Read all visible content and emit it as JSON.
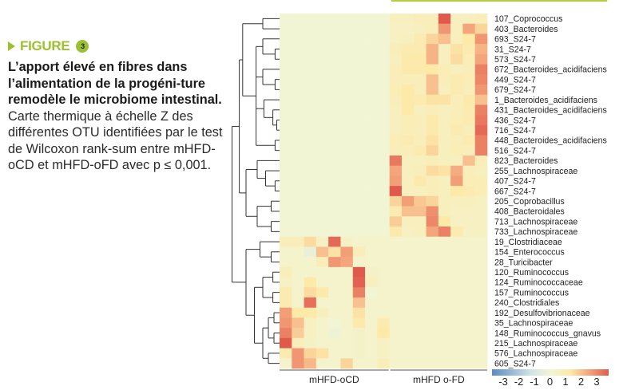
{
  "caption": {
    "figure_label": "FIGURE",
    "figure_number": "3",
    "title": "L’apport élevé en fibres dans l’alimentation de la progéni-ture remodèle le microbiome intestinal.",
    "description": "Carte thermique à échelle Z des différentes OTU identifiées par le test de Wilcoxon rank-sum entre mHFD-oCD et mHFD-oFD avec p ≤ 0,001."
  },
  "colors": {
    "accent": "#9cc130",
    "low": "#5b8ac4",
    "mid": "#f2f5d4",
    "high": "#e05a4c"
  },
  "chart_data": {
    "type": "heatmap",
    "groups": [
      {
        "label": "mHFD-oCD",
        "n_columns": 9
      },
      {
        "label": "mHFD o-FD",
        "n_columns": 8
      }
    ],
    "rows": [
      "107_Coprococcus",
      "403_Bacteroides",
      "693_S24-7",
      "31_S24-7",
      "573_S24-7",
      "672_Bacteroides_acidifaciens",
      "449_S24-7",
      "679_S24-7",
      "1_Bacteroides_acidifaciens",
      "431_Bacteroides_acidifaciens",
      "436_S24-7",
      "716_S24-7",
      "448_Bacteroides_acidifaciens",
      "516_S24-7",
      "823_Bacteroides",
      "255_Lachnospiraceae",
      "407_S24-7",
      "667_S24-7",
      "205_Coprobacillus",
      "408_Bacteroidales",
      "713_Lachnospiraceae",
      "733_Lachnospiraceae",
      "19_Clostridiaceae",
      "154_Enterococcus",
      "28_Turicibacter",
      "120_Ruminococcus",
      "124_Ruminococcaceae",
      "157_Ruminococcus",
      "240_Clostridiales",
      "192_Desulfovibrionaceae",
      "35_Lachnospiraceae",
      "148_Ruminococcus_gnavus",
      "215_Lachnospiraceae",
      "576_Lachnospiraceae",
      "605_S24-7"
    ],
    "values": [
      [
        0,
        0,
        0,
        0,
        0,
        0,
        0,
        0,
        0,
        0.5,
        0.5,
        0.6,
        0.6,
        3,
        0.5,
        0.5,
        0.6
      ],
      [
        0,
        0,
        0,
        0,
        0,
        0,
        0,
        0,
        0,
        0.4,
        0.4,
        0.5,
        0.6,
        2.2,
        0.5,
        2,
        1.3
      ],
      [
        0,
        0,
        0,
        0,
        0,
        0,
        0,
        0,
        0,
        0.4,
        0.5,
        0.8,
        1.3,
        1.6,
        0.5,
        1,
        2.2
      ],
      [
        0,
        0,
        0,
        0,
        0,
        0,
        0,
        0,
        0,
        0.6,
        0.8,
        0.8,
        1.8,
        0.5,
        1.1,
        0.8,
        1.8
      ],
      [
        0,
        0,
        0,
        0,
        0,
        0,
        0,
        0,
        0,
        0.5,
        0.9,
        0.9,
        1.8,
        0.5,
        1.2,
        0.7,
        2.0
      ],
      [
        0,
        0,
        0,
        0,
        0,
        0,
        0,
        0,
        0,
        0.6,
        0.9,
        0.9,
        1,
        0.7,
        0.5,
        0.6,
        2.5
      ],
      [
        0,
        0,
        0,
        0,
        0,
        0,
        0,
        0,
        0,
        0.6,
        0.6,
        0.6,
        1.6,
        0.6,
        0.8,
        0.7,
        2.4
      ],
      [
        0,
        0,
        0,
        0,
        0,
        0,
        0,
        0,
        0,
        0.7,
        1.0,
        0.6,
        1.6,
        0.5,
        0.8,
        0.6,
        2.2
      ],
      [
        0,
        0,
        0,
        0,
        0,
        0,
        0,
        0,
        0,
        0.6,
        1.0,
        0.8,
        1.1,
        1.1,
        0.6,
        0.9,
        1.6
      ],
      [
        0,
        0,
        0,
        0,
        0,
        0,
        0,
        0,
        0,
        0.5,
        1.0,
        0.5,
        0.6,
        0.5,
        0.6,
        0.8,
        2.5
      ],
      [
        0,
        0,
        0,
        0,
        0,
        0,
        0,
        0,
        0,
        0.5,
        0.7,
        0.6,
        0.9,
        0.5,
        0.7,
        0.8,
        2.6
      ],
      [
        0,
        0,
        0,
        0,
        0,
        0,
        0,
        0,
        0,
        0.5,
        0.7,
        0.6,
        0.9,
        0.5,
        0.8,
        0.6,
        2.8
      ],
      [
        0,
        0,
        0,
        0,
        0,
        0,
        0,
        0,
        0,
        0.7,
        0.8,
        0.6,
        1.1,
        0.5,
        0.6,
        0.8,
        2.5
      ],
      [
        0,
        0,
        0,
        0,
        0,
        0,
        0,
        0,
        0,
        0.6,
        0.6,
        0.8,
        1.3,
        0.5,
        0.7,
        0.6,
        2.5
      ],
      [
        0,
        0,
        0,
        0,
        0,
        0,
        0,
        0,
        0,
        2.6,
        0.5,
        0.5,
        0.6,
        0.5,
        0.5,
        1.6,
        0.6
      ],
      [
        0,
        0,
        0,
        0,
        0,
        0,
        0,
        0,
        0,
        2.0,
        0.5,
        0.6,
        1.2,
        1.1,
        1.9,
        0.6,
        0.5
      ],
      [
        0,
        0,
        0,
        0,
        0,
        0,
        0,
        0,
        0,
        2.1,
        0.5,
        0.9,
        0.6,
        0.5,
        2.1,
        0.7,
        0.7
      ],
      [
        0,
        0,
        0,
        0,
        0,
        0,
        0,
        0,
        0,
        3.0,
        0.5,
        0.5,
        0.6,
        0.5,
        1,
        0.8,
        0.7
      ],
      [
        0,
        0,
        0,
        0,
        0,
        0,
        0,
        0,
        0,
        1.3,
        2.1,
        1.5,
        1.3,
        0.5,
        0.5,
        0.5,
        0.4
      ],
      [
        0,
        0,
        0,
        0,
        0,
        0,
        0,
        0,
        0,
        0.8,
        1.6,
        1.6,
        2.3,
        0.5,
        0.4,
        0.4,
        0.4
      ],
      [
        0,
        0,
        0,
        0,
        0,
        0,
        0,
        0,
        0,
        1.4,
        0.5,
        0.5,
        2.4,
        1.0,
        0.4,
        0.4,
        0.4
      ],
      [
        0,
        0,
        0,
        0,
        0,
        0,
        0,
        0,
        0,
        0.9,
        0.4,
        0.5,
        2.0,
        2.5,
        0.8,
        0.4,
        0.4
      ],
      [
        0.6,
        0.6,
        1.2,
        0.4,
        2.8,
        0.3,
        0.2,
        0.2,
        0.2,
        0.2,
        0.2,
        0.2,
        0.2,
        0.2,
        0.2,
        0.2,
        0.2
      ],
      [
        0.2,
        0.2,
        -0.3,
        1.6,
        1.1,
        2.1,
        0.6,
        0.2,
        0.2,
        0.2,
        0.2,
        0.2,
        0.2,
        0.2,
        0.2,
        0.2,
        0.2
      ],
      [
        0.2,
        0.2,
        0.2,
        0.6,
        2.2,
        2.0,
        0.2,
        0.2,
        0.2,
        0.2,
        0.2,
        0.2,
        0.2,
        0.2,
        0.2,
        0.2,
        0.2
      ],
      [
        0.6,
        0.2,
        0.2,
        0.2,
        0.2,
        0.2,
        3.0,
        0.3,
        0.2,
        0.2,
        0.2,
        0.2,
        0.2,
        0.2,
        0.2,
        0.2,
        0.2
      ],
      [
        0.4,
        0.2,
        1.0,
        0.2,
        0.2,
        0.2,
        2.9,
        0.5,
        0.2,
        0.2,
        0.2,
        0.2,
        0.2,
        0.2,
        0.2,
        0.2,
        0.2
      ],
      [
        0.8,
        0.2,
        1.2,
        0.9,
        0.2,
        0.2,
        2.5,
        0,
        0.2,
        0.2,
        0.2,
        0.2,
        0.2,
        0.2,
        0.2,
        0.2,
        0.2
      ],
      [
        0.8,
        0.2,
        2.7,
        0.2,
        0.2,
        0.2,
        1.6,
        0.2,
        0.2,
        0.2,
        0.2,
        0.2,
        0.2,
        0.2,
        0.2,
        0.2,
        0.2
      ],
      [
        2.1,
        1.0,
        1.0,
        0.5,
        0.2,
        0.2,
        1.1,
        0.2,
        0.2,
        0.2,
        0.2,
        0.2,
        0.2,
        0.2,
        0.2,
        0.2,
        0.2
      ],
      [
        2.2,
        1.6,
        0.4,
        0.2,
        0,
        0.2,
        0.9,
        0.2,
        0.8,
        0.2,
        0.2,
        0.2,
        0.2,
        0.2,
        0.2,
        0.2,
        0.2
      ],
      [
        2.5,
        1.4,
        0.4,
        0.2,
        -0.1,
        0.2,
        0.3,
        0.2,
        1.0,
        0.2,
        0.2,
        0.2,
        0.2,
        0.2,
        0.2,
        0.2,
        0.2
      ],
      [
        3.0,
        0.6,
        0.3,
        0.2,
        0.2,
        0.2,
        0.3,
        0.2,
        0.4,
        0.2,
        0.2,
        0.2,
        0.2,
        0.2,
        0.2,
        0.2,
        0.2
      ],
      [
        0.8,
        2.2,
        1.3,
        1.1,
        0.2,
        0.2,
        0.3,
        0.2,
        0.4,
        0.2,
        0.2,
        0.2,
        0.2,
        0.2,
        0.2,
        0.2,
        0.2
      ],
      [
        0.2,
        2.2,
        1.7,
        0.2,
        0.2,
        1.3,
        0.2,
        0.2,
        0.6,
        0.2,
        0.2,
        0.2,
        0.2,
        0.2,
        0.2,
        0.2,
        0.2
      ]
    ],
    "colorbar": {
      "range": [
        -3,
        3
      ],
      "tick_labels": [
        "-3",
        "-2",
        "-1",
        "0",
        "1",
        "2",
        "3"
      ]
    },
    "row_dendrogram": true
  }
}
